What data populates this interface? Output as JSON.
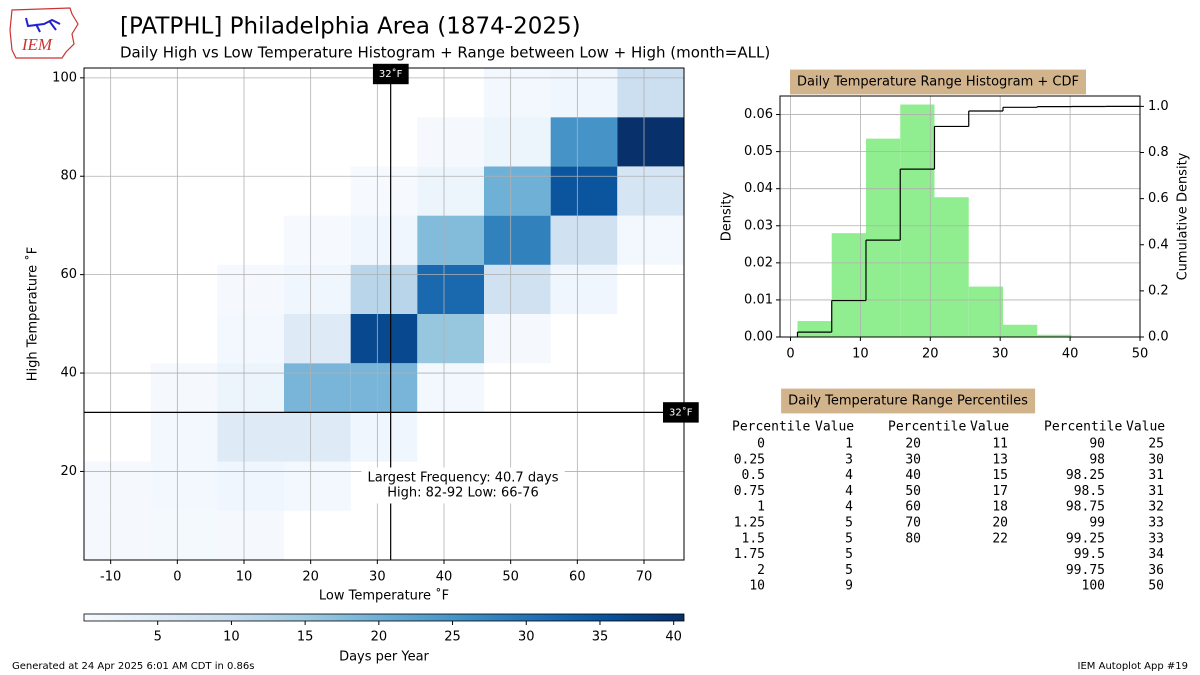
{
  "title": "[PATPHL] Philadelphia Area (1874-2025)",
  "subtitle": "Daily High vs Low Temperature Histogram + Range between Low + High (month=ALL)",
  "logo_text": "IEM",
  "footer_left": "Generated at 24 Apr 2025 6:01 AM CDT in 0.86s",
  "footer_right": "IEM Autoplot App #19",
  "chart_data": [
    {
      "type": "heatmap",
      "x_label": "Low Temperature ˚F",
      "y_label": "High Temperature ˚F",
      "x_bins": [
        -14,
        -4,
        6,
        16,
        26,
        36,
        46,
        56,
        66,
        76
      ],
      "y_bins": [
        2,
        12,
        22,
        32,
        42,
        52,
        62,
        72,
        82,
        92,
        102
      ],
      "values": [
        [
          0.5,
          0.7,
          0.5,
          null,
          null,
          null,
          null,
          null,
          null
        ],
        [
          0.5,
          1,
          1.5,
          1,
          null,
          null,
          null,
          null,
          null
        ],
        [
          null,
          1,
          5,
          5,
          1.5,
          null,
          null,
          null,
          null
        ],
        [
          null,
          0.5,
          2,
          19,
          19,
          1,
          null,
          null,
          null
        ],
        [
          null,
          null,
          1,
          5,
          37,
          16,
          0.5,
          null,
          null
        ],
        [
          null,
          null,
          0.5,
          1.5,
          12,
          32,
          8,
          1.5,
          null
        ],
        [
          null,
          null,
          null,
          0.3,
          1.5,
          18,
          28,
          8,
          1
        ],
        [
          null,
          null,
          null,
          null,
          0.3,
          2,
          20,
          35,
          7
        ],
        [
          null,
          null,
          null,
          null,
          null,
          0.5,
          2,
          25,
          40.7
        ],
        [
          null,
          null,
          null,
          null,
          null,
          null,
          1,
          1.5,
          9
        ]
      ],
      "xlim": [
        -14,
        76
      ],
      "ylim": [
        2,
        102
      ],
      "xticks": [
        -10,
        0,
        10,
        20,
        30,
        40,
        50,
        60,
        70
      ],
      "yticks": [
        20,
        40,
        60,
        80,
        100
      ],
      "grid": true,
      "vline": 32,
      "vline_label": "32˚F",
      "hline": 32,
      "hline_label": "32˚F",
      "annotation": [
        "Largest Frequency: 40.7 days",
        "High: 82-92 Low: 66-76"
      ],
      "colormap": [
        "#f7fbff",
        "#deebf7",
        "#c6dbef",
        "#9ecae1",
        "#6baed6",
        "#4292c6",
        "#2171b5",
        "#08519c",
        "#08306b"
      ],
      "colorbar_label": "Days per Year",
      "zlim": [
        0,
        40.7
      ],
      "zticks": [
        5,
        10,
        15,
        20,
        25,
        30,
        35,
        40
      ]
    },
    {
      "type": "histogram",
      "title": "Daily Temperature Range Histogram + CDF",
      "y_label": "Density",
      "y2_label": "Cumulative Density",
      "bins": [
        1,
        5.9,
        10.8,
        15.7,
        20.6,
        25.5,
        30.4,
        35.3,
        40.2,
        45.1,
        50
      ],
      "values": [
        0.0043,
        0.028,
        0.0535,
        0.0627,
        0.0377,
        0.0136,
        0.0033,
        0.0006,
        0.0001,
        2e-05
      ],
      "color": "#90ee90",
      "cdf": {
        "values": [
          0.021,
          0.158,
          0.42,
          0.728,
          0.913,
          0.98,
          0.996,
          0.999,
          0.9995,
          1.0
        ],
        "axis": "y2",
        "color": "#000000"
      },
      "xlim": [
        -1.5,
        50
      ],
      "ylim": [
        0,
        0.065
      ],
      "y2lim": [
        0,
        1.045
      ],
      "xticks": [
        0,
        10,
        20,
        30,
        40,
        50
      ],
      "yticks": [
        {
          "value": 0,
          "label": "0.00"
        },
        {
          "value": 0.01,
          "label": "0.01"
        },
        {
          "value": 0.02,
          "label": "0.02"
        },
        {
          "value": 0.03,
          "label": "0.03"
        },
        {
          "value": 0.04,
          "label": "0.04"
        },
        {
          "value": 0.05,
          "label": "0.05"
        },
        {
          "value": 0.06,
          "label": "0.06"
        }
      ],
      "y2ticks": [
        {
          "value": 0,
          "label": "0.0"
        },
        {
          "value": 0.2,
          "label": "0.2"
        },
        {
          "value": 0.4,
          "label": "0.4"
        },
        {
          "value": 0.6,
          "label": "0.6"
        },
        {
          "value": 0.8,
          "label": "0.8"
        },
        {
          "value": 1,
          "label": "1.0"
        }
      ],
      "grid": true
    }
  ],
  "table": {
    "title": "Daily Temperature Range Percentiles",
    "columns": [
      "Percentile",
      "Value"
    ],
    "groups": [
      [
        [
          0,
          1
        ],
        [
          0.25,
          3
        ],
        [
          0.5,
          4
        ],
        [
          0.75,
          4
        ],
        [
          1,
          4
        ],
        [
          1.25,
          5
        ],
        [
          1.5,
          5
        ],
        [
          1.75,
          5
        ],
        [
          2,
          5
        ],
        [
          10,
          9
        ]
      ],
      [
        [
          20,
          11
        ],
        [
          30,
          13
        ],
        [
          40,
          15
        ],
        [
          50,
          17
        ],
        [
          60,
          18
        ],
        [
          70,
          20
        ],
        [
          80,
          22
        ]
      ],
      [
        [
          90,
          25
        ],
        [
          98,
          30
        ],
        [
          98.25,
          31
        ],
        [
          98.5,
          31
        ],
        [
          98.75,
          32
        ],
        [
          99,
          33
        ],
        [
          99.25,
          33
        ],
        [
          99.5,
          34
        ],
        [
          99.75,
          36
        ],
        [
          100,
          50
        ]
      ]
    ]
  }
}
